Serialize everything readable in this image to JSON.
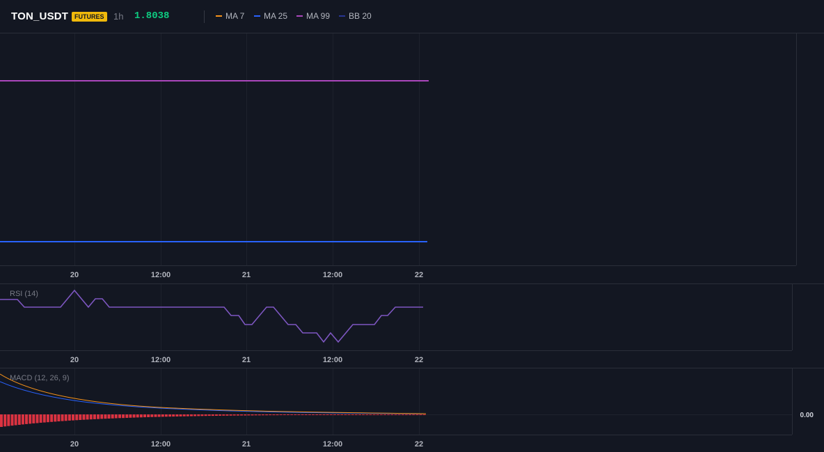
{
  "header": {
    "symbol": "TON_USDT",
    "badge": "FUTURES",
    "interval": "1h",
    "price": "1.8038",
    "legend": [
      {
        "label": "MA 7",
        "color": "#f7931a"
      },
      {
        "label": "MA 25",
        "color": "#2962ff"
      },
      {
        "label": "MA 99",
        "color": "#ab47bc"
      },
      {
        "label": "BB 20",
        "color": "#283593"
      }
    ]
  },
  "time_axis": [
    "20",
    "12:00",
    "21",
    "12:00",
    "22"
  ],
  "rsi": {
    "label": "RSI (14)"
  },
  "macd": {
    "label": "MACD (12, 26, 9)",
    "zero_label": "0.00"
  },
  "colors": {
    "background": "#131722",
    "grid": "#1e222d",
    "ma99": "#ab47bc",
    "ma25": "#2962ff",
    "rsi_line": "#7e57c2",
    "macd_line": "#f7931a",
    "signal_line": "#2962ff",
    "histogram": "#f23645"
  }
}
